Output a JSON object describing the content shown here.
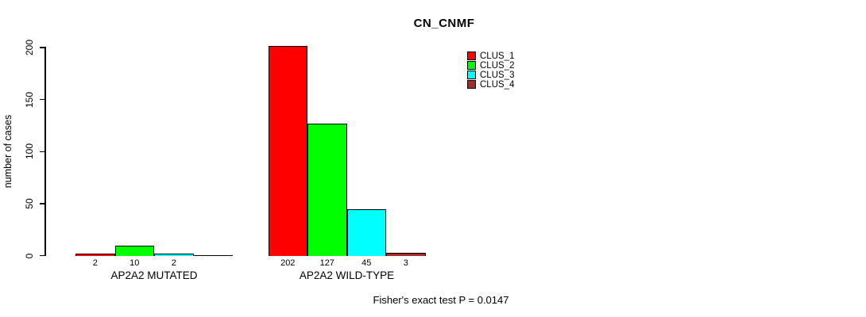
{
  "chart_data": {
    "type": "bar",
    "title": "CN_CNMF",
    "xlabel": "",
    "ylabel": "number of cases",
    "ylim": [
      0,
      200
    ],
    "yticks": [
      0,
      50,
      100,
      150,
      200
    ],
    "grid": false,
    "legend_position": "top-right",
    "categories": [
      "AP2A2 MUTATED",
      "AP2A2 WILD-TYPE"
    ],
    "series": [
      {
        "name": "CLUS_1",
        "color": "#FF0000",
        "values": [
          2,
          202
        ]
      },
      {
        "name": "CLUS_2",
        "color": "#00FF00",
        "values": [
          10,
          127
        ]
      },
      {
        "name": "CLUS_3",
        "color": "#00FFFF",
        "values": [
          2,
          45
        ]
      },
      {
        "name": "CLUS_4",
        "color": "#A52A2A",
        "values": [
          0,
          3
        ]
      }
    ],
    "bar_value_labels": [
      [
        "2",
        "10",
        "2",
        ""
      ],
      [
        "202",
        "127",
        "45",
        "3"
      ]
    ],
    "annotation": "Fisher's exact test P = 0.0147",
    "colors": {
      "background": "#FFFFFF",
      "axis": "#000000",
      "text": "#000000"
    }
  }
}
